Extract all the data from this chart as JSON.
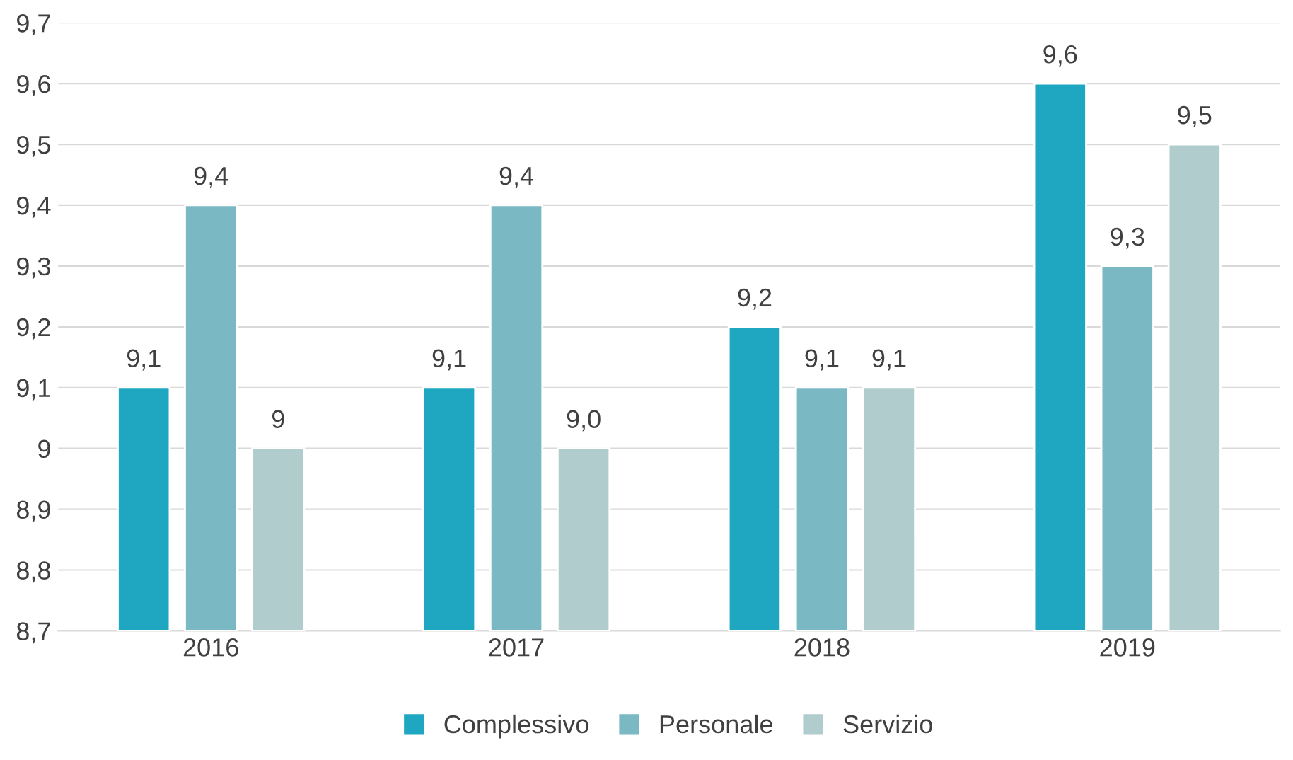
{
  "chart_data": {
    "type": "bar",
    "categories": [
      "2016",
      "2017",
      "2018",
      "2019"
    ],
    "series": [
      {
        "name": "Complessivo",
        "color": "#1fa7c1",
        "values": [
          9.1,
          9.1,
          9.2,
          9.6
        ],
        "value_labels": [
          "9,1",
          "9,1",
          "9,2",
          "9,6"
        ]
      },
      {
        "name": "Personale",
        "color": "#7ab8c4",
        "values": [
          9.4,
          9.4,
          9.1,
          9.3
        ],
        "value_labels": [
          "9,4",
          "9,4",
          "9,1",
          "9,3"
        ]
      },
      {
        "name": "Servizio",
        "color": "#b0cccc",
        "values": [
          9.0,
          9.0,
          9.1,
          9.5
        ],
        "value_labels": [
          "9",
          "9,0",
          "9,1",
          "9,5"
        ]
      }
    ],
    "ylim": [
      8.7,
      9.7
    ],
    "yticks": [
      {
        "value": 8.7,
        "label": "8,7"
      },
      {
        "value": 8.8,
        "label": "8,8"
      },
      {
        "value": 8.9,
        "label": "8,9"
      },
      {
        "value": 9,
        "label": "9"
      },
      {
        "value": 9.1,
        "label": "9,1"
      },
      {
        "value": 9.2,
        "label": "9,2"
      },
      {
        "value": 9.3,
        "label": "9,3"
      },
      {
        "value": 9.4,
        "label": "9,4"
      },
      {
        "value": 9.5,
        "label": "9,5"
      },
      {
        "value": 9.6,
        "label": "9,6"
      },
      {
        "value": 9.7,
        "label": "9,7"
      }
    ],
    "grid": "y",
    "legend": "bottom"
  }
}
